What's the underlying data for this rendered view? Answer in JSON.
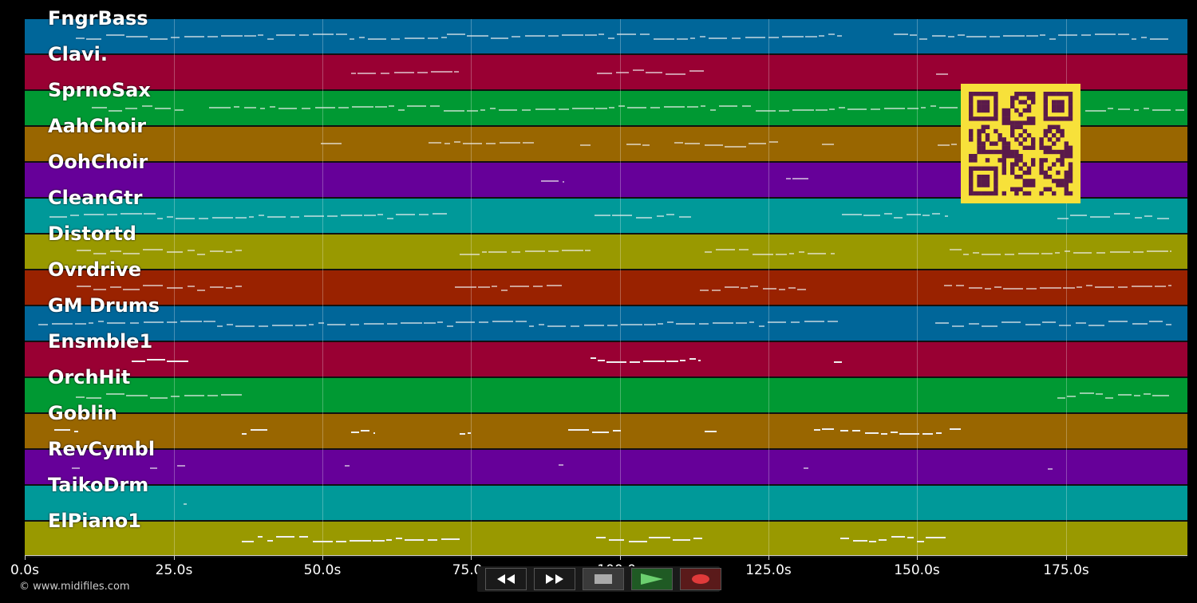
{
  "tracks": [
    {
      "name": "FngrBass",
      "color": "#006699"
    },
    {
      "name": "Clavi.",
      "color": "#990033"
    },
    {
      "name": "SprnoSax",
      "color": "#009933"
    },
    {
      "name": "AahChoir",
      "color": "#996600"
    },
    {
      "name": "OohChoir",
      "color": "#660099"
    },
    {
      "name": "CleanGtr",
      "color": "#009999"
    },
    {
      "name": "Distortd",
      "color": "#999900"
    },
    {
      "name": "Ovrdrive",
      "color": "#992200"
    },
    {
      "name": "GM Drums",
      "color": "#006699"
    },
    {
      "name": "Ensmble1",
      "color": "#990033"
    },
    {
      "name": "OrchHit",
      "color": "#009933"
    },
    {
      "name": "Goblin",
      "color": "#996600"
    },
    {
      "name": "RevCymbl",
      "color": "#660099"
    },
    {
      "name": "TaikoDrm",
      "color": "#009999"
    },
    {
      "name": "ElPiano1",
      "color": "#999900"
    }
  ],
  "timeline": {
    "ticks": [
      "0.0s",
      "25.0s",
      "50.0s",
      "75.0s",
      "100.0s",
      "125.0s",
      "150.0s",
      "175.0s"
    ]
  },
  "footer": {
    "copyright": "© www.midifiles.com"
  },
  "controls": {
    "rewind_icon": "rewind-icon",
    "fast_forward_icon": "fast-forward-icon",
    "stop_icon": "stop-icon",
    "play_icon": "play-icon",
    "record_icon": "record-icon"
  },
  "colors": {
    "qr_background": "#f7e13a",
    "qr_foreground": "#5a1a4a"
  }
}
